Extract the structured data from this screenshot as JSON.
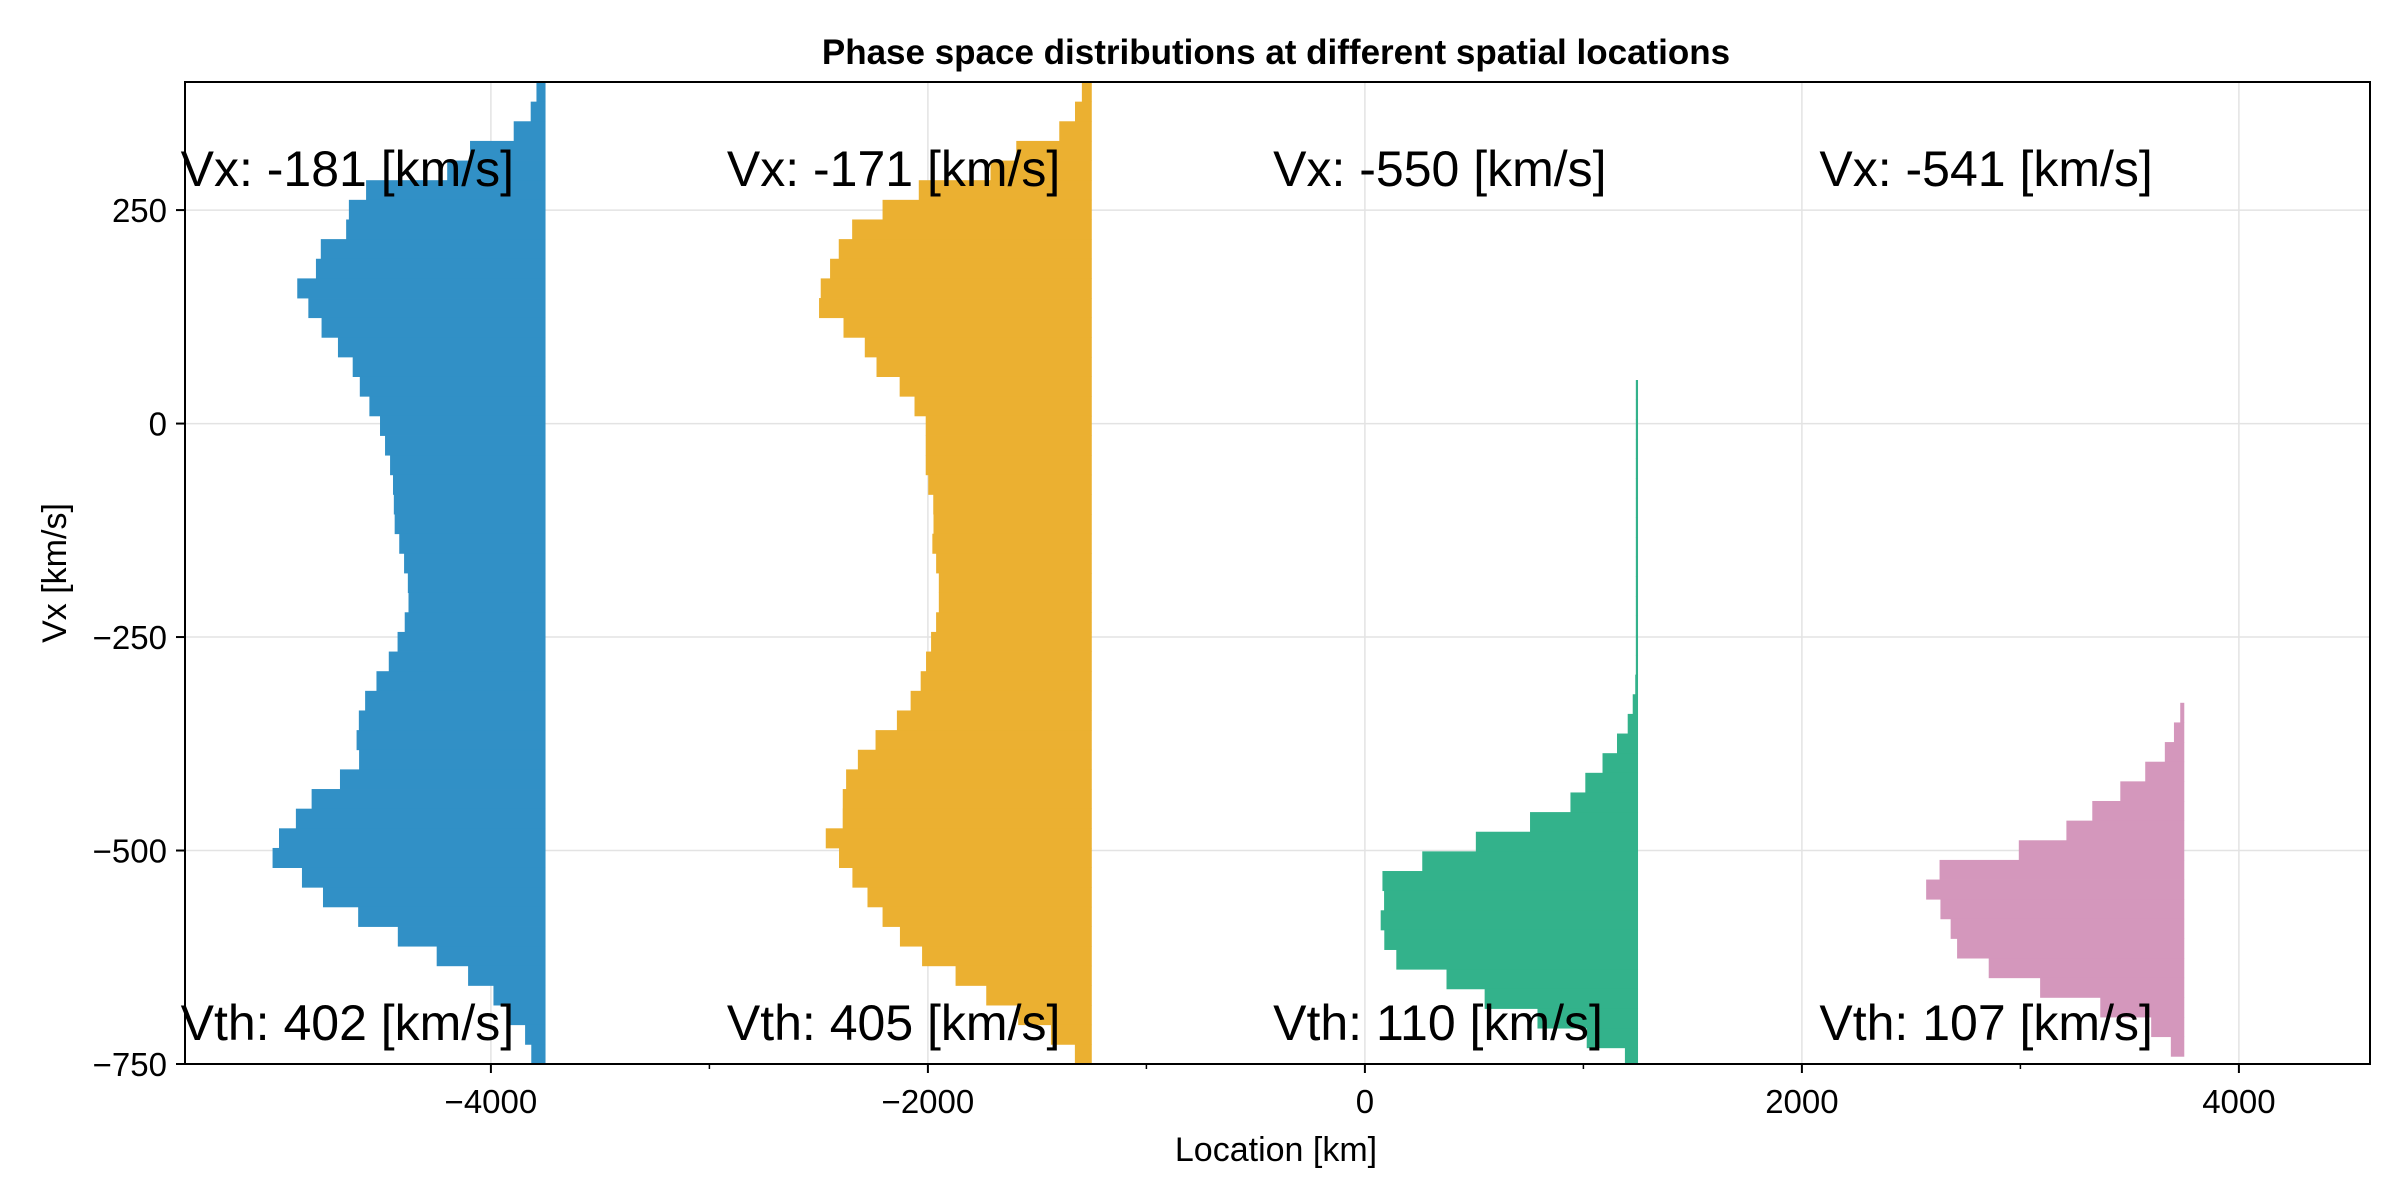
{
  "chart_data": {
    "type": "bar",
    "title": "Phase space distributions at different spatial locations",
    "xlabel": "Location [km]",
    "ylabel": "Vx [km/s]",
    "xlim": [
      -5400,
      4600
    ],
    "ylim": [
      -750,
      400
    ],
    "xticks": [
      -4000,
      -2000,
      0,
      2000,
      4000
    ],
    "xtick_labels": [
      "−4000",
      "−2000",
      "0",
      "2000",
      "4000"
    ],
    "yticks": [
      250,
      0,
      -250,
      -500,
      -750
    ],
    "ytick_labels": [
      "250",
      "0",
      "−250",
      "−500",
      "−750"
    ],
    "grid": true,
    "bin_width": 23,
    "series": [
      {
        "location": -3750,
        "color": "#3190c6",
        "annotation_top": "Vx: -181 [km/s]",
        "annotation_bottom": "Vth: 402 [km/s]",
        "profile": [
          [
            400,
            30
          ],
          [
            370,
            60
          ],
          [
            350,
            95
          ],
          [
            330,
            230
          ],
          [
            310,
            450
          ],
          [
            290,
            450
          ],
          [
            270,
            900
          ],
          [
            250,
            900
          ],
          [
            240,
            900
          ],
          [
            220,
            920
          ],
          [
            200,
            1060
          ],
          [
            180,
            1050
          ],
          [
            160,
            1140
          ],
          [
            140,
            1090
          ],
          [
            120,
            1070
          ],
          [
            100,
            950
          ],
          [
            80,
            950
          ],
          [
            60,
            850
          ],
          [
            40,
            850
          ],
          [
            0,
            760
          ],
          [
            -60,
            700
          ],
          [
            -120,
            690
          ],
          [
            -160,
            650
          ],
          [
            -200,
            620
          ],
          [
            -240,
            650
          ],
          [
            -280,
            720
          ],
          [
            -320,
            820
          ],
          [
            -360,
            870
          ],
          [
            -400,
            850
          ],
          [
            -420,
            960
          ],
          [
            -450,
            1130
          ],
          [
            -470,
            1150
          ],
          [
            -490,
            1240
          ],
          [
            -510,
            1250
          ],
          [
            -530,
            1120
          ],
          [
            -550,
            1050
          ],
          [
            -580,
            840
          ],
          [
            -620,
            520
          ],
          [
            -660,
            270
          ],
          [
            -690,
            170
          ],
          [
            -720,
            80
          ],
          [
            -745,
            60
          ]
        ]
      },
      {
        "location": -1250,
        "color": "#ebb031",
        "annotation_top": "Vx: -171 [km/s]",
        "annotation_bottom": "Vth: 405 [km/s]",
        "profile": [
          [
            400,
            30
          ],
          [
            370,
            70
          ],
          [
            350,
            100
          ],
          [
            330,
            230
          ],
          [
            310,
            450
          ],
          [
            290,
            470
          ],
          [
            270,
            860
          ],
          [
            250,
            960
          ],
          [
            230,
            1090
          ],
          [
            200,
            1170
          ],
          [
            180,
            1200
          ],
          [
            160,
            1240
          ],
          [
            130,
            1250
          ],
          [
            110,
            1120
          ],
          [
            90,
            1040
          ],
          [
            60,
            970
          ],
          [
            40,
            860
          ],
          [
            0,
            760
          ],
          [
            -60,
            760
          ],
          [
            -100,
            720
          ],
          [
            -140,
            730
          ],
          [
            -180,
            700
          ],
          [
            -220,
            700
          ],
          [
            -250,
            730
          ],
          [
            -300,
            780
          ],
          [
            -340,
            860
          ],
          [
            -380,
            1030
          ],
          [
            -410,
            1120
          ],
          [
            -440,
            1140
          ],
          [
            -470,
            1140
          ],
          [
            -490,
            1240
          ],
          [
            -510,
            1150
          ],
          [
            -530,
            1100
          ],
          [
            -560,
            1010
          ],
          [
            -590,
            920
          ],
          [
            -620,
            800
          ],
          [
            -650,
            600
          ],
          [
            -680,
            420
          ],
          [
            -710,
            220
          ],
          [
            -730,
            100
          ],
          [
            -745,
            60
          ]
        ]
      },
      {
        "location": 1250,
        "color": "#33b28b",
        "annotation_top": "Vx: -550 [km/s]",
        "annotation_bottom": "Vth: 110 [km/s]",
        "profile": [
          [
            48,
            10
          ],
          [
            35,
            10
          ],
          [
            -88,
            10
          ],
          [
            -98,
            10
          ],
          [
            -300,
            10
          ],
          [
            -320,
            20
          ],
          [
            -340,
            30
          ],
          [
            -360,
            60
          ],
          [
            -380,
            110
          ],
          [
            -400,
            170
          ],
          [
            -420,
            240
          ],
          [
            -440,
            290
          ],
          [
            -460,
            400
          ],
          [
            -480,
            690
          ],
          [
            -500,
            800
          ],
          [
            -520,
            1100
          ],
          [
            -540,
            1190
          ],
          [
            -560,
            1160
          ],
          [
            -580,
            1180
          ],
          [
            -600,
            1150
          ],
          [
            -620,
            1200
          ],
          [
            -640,
            950
          ],
          [
            -660,
            810
          ],
          [
            -680,
            650
          ],
          [
            -700,
            420
          ],
          [
            -720,
            230
          ],
          [
            -740,
            60
          ]
        ]
      },
      {
        "location": 3750,
        "color": "#d497bc",
        "annotation_top": "Vx: -541 [km/s]",
        "annotation_bottom": "Vth: 107 [km/s]",
        "profile": [
          [
            -330,
            10
          ],
          [
            -350,
            30
          ],
          [
            -370,
            60
          ],
          [
            -390,
            100
          ],
          [
            -410,
            190
          ],
          [
            -430,
            290
          ],
          [
            -450,
            400
          ],
          [
            -470,
            520
          ],
          [
            -490,
            580
          ],
          [
            -505,
            860
          ],
          [
            -515,
            1150
          ],
          [
            -525,
            1110
          ],
          [
            -540,
            1240
          ],
          [
            -555,
            1080
          ],
          [
            -570,
            1120
          ],
          [
            -590,
            1070
          ],
          [
            -610,
            1060
          ],
          [
            -630,
            970
          ],
          [
            -650,
            770
          ],
          [
            -670,
            560
          ],
          [
            -690,
            300
          ],
          [
            -710,
            120
          ],
          [
            -730,
            60
          ],
          [
            -745,
            20
          ]
        ]
      }
    ]
  }
}
